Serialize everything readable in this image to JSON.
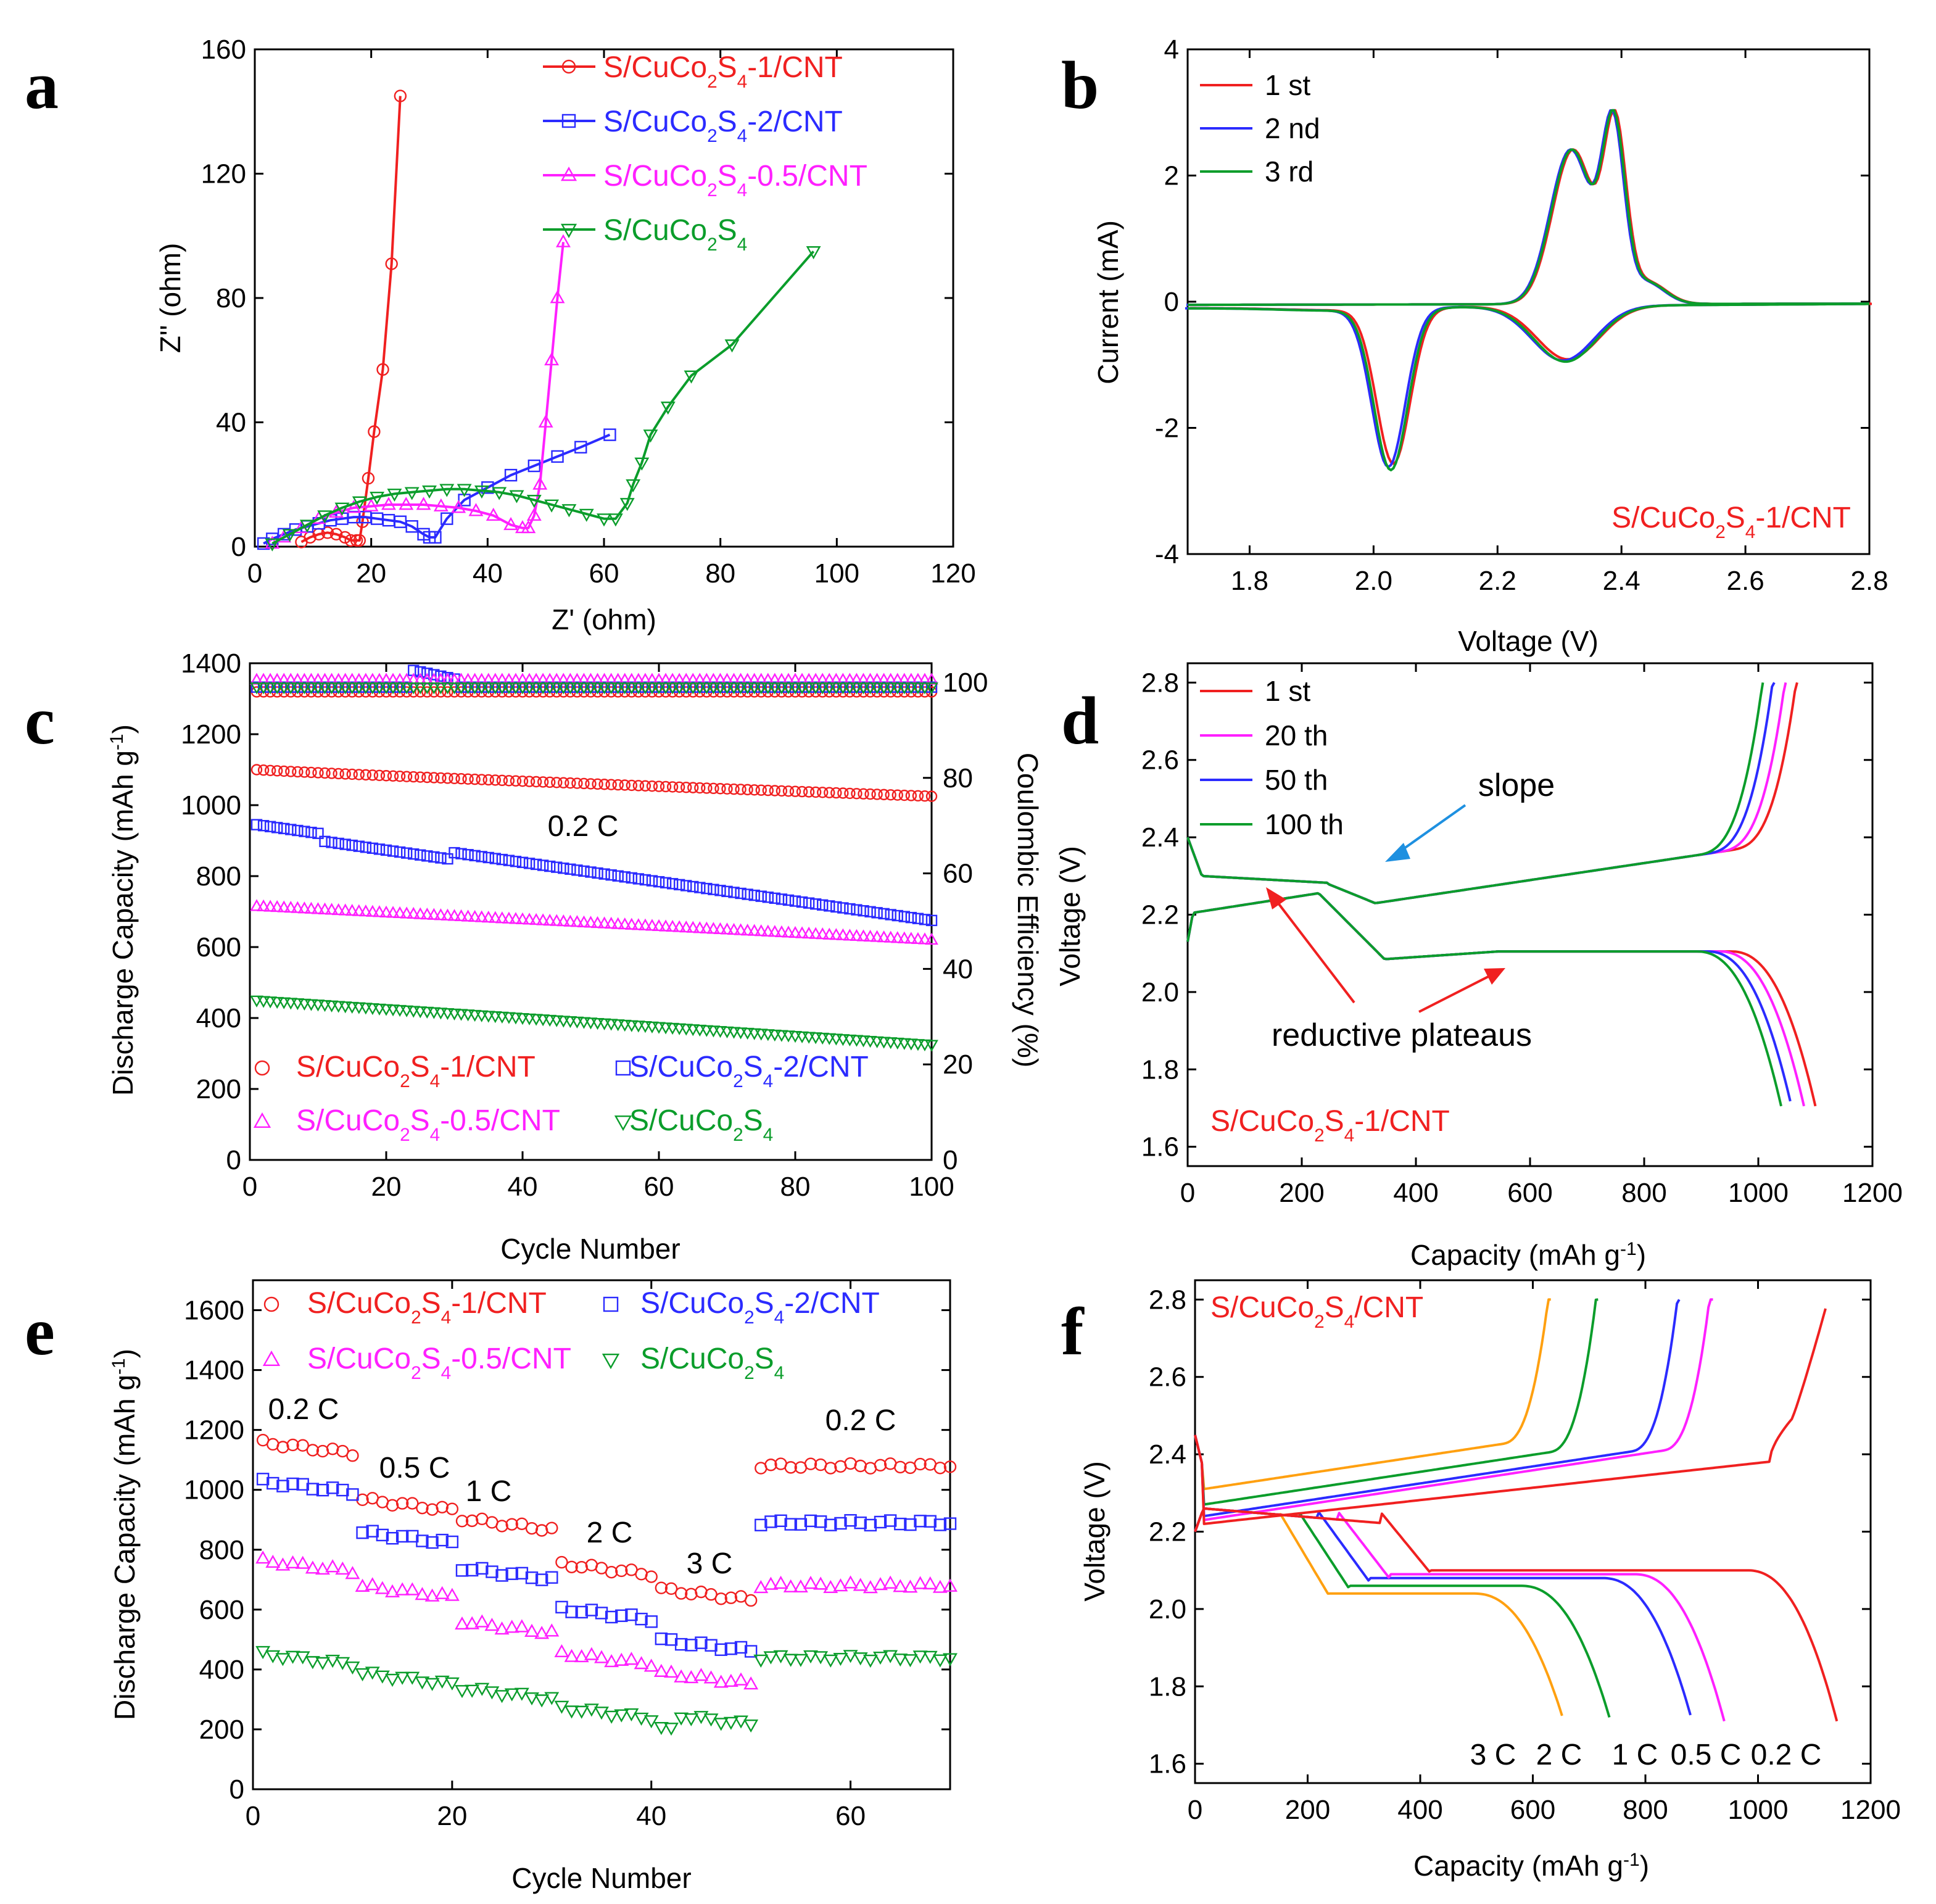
{
  "figure": {
    "colors": {
      "red": "#f02020",
      "blue": "#2b2bff",
      "magenta": "#ff20ff",
      "green": "#0b9d2b",
      "orange": "#ffa010",
      "axis": "#000000"
    }
  },
  "chart_data": [
    {
      "id": "a",
      "type": "scatter",
      "panel_label": "a",
      "xlabel": "Z' (ohm)",
      "ylabel": "Z'' (ohm)",
      "xlim": [
        0,
        120
      ],
      "ylim": [
        0,
        160
      ],
      "xticks": [
        0,
        20,
        40,
        60,
        80,
        100,
        120
      ],
      "yticks": [
        0,
        40,
        80,
        120,
        160
      ],
      "legend_position": "top-right",
      "series": [
        {
          "name": "S/CuCo2S4-1/CNT",
          "label_main": "S/CuCo",
          "sub1": "2",
          "mid": "S",
          "sub2": "4",
          "tail": "-1/CNT",
          "color": "red",
          "marker": "circle",
          "x": [
            8,
            9.5,
            11,
            12.5,
            14,
            15.5,
            16.5,
            17.5,
            18,
            18.5,
            19.5,
            20.5,
            22,
            23.5,
            25
          ],
          "y": [
            1.5,
            3,
            4,
            4.5,
            4,
            3,
            2,
            2,
            2,
            8,
            22,
            37,
            57,
            91,
            145
          ]
        },
        {
          "name": "S/CuCo2S4-2/CNT",
          "label_main": "S/CuCo",
          "sub1": "2",
          "mid": "S",
          "sub2": "4",
          "tail": "-2/CNT",
          "color": "blue",
          "marker": "square",
          "x": [
            1.5,
            3,
            5,
            7,
            9,
            11,
            13,
            15,
            17,
            19,
            21,
            23,
            25,
            27,
            29,
            30,
            31,
            33,
            36,
            40,
            44,
            48,
            52,
            56,
            61
          ],
          "y": [
            1,
            2.5,
            4,
            5.5,
            6.5,
            7.5,
            8.5,
            9,
            9.5,
            9.5,
            9,
            8.5,
            8,
            6.5,
            4,
            3,
            3,
            9,
            15,
            19,
            23,
            26,
            29,
            32,
            36
          ]
        },
        {
          "name": "S/CuCo2S4-0.5/CNT",
          "label_main": "S/CuCo",
          "sub1": "2",
          "mid": "S",
          "sub2": "4",
          "tail": "-0.5/CNT",
          "color": "magenta",
          "marker": "triangle-up",
          "x": [
            3,
            5,
            8,
            11,
            14,
            17,
            20,
            23,
            26,
            29,
            32,
            35,
            38,
            41,
            44,
            46,
            47,
            48,
            49,
            50,
            51,
            52,
            53
          ],
          "y": [
            1,
            3,
            6,
            9,
            11,
            12.5,
            13,
            13.5,
            13.5,
            13.5,
            13,
            12.5,
            11.5,
            10,
            7,
            6,
            6,
            10,
            20,
            40,
            60,
            80,
            98
          ]
        },
        {
          "name": "S/CuCo2S4",
          "label_main": "S/CuCo",
          "sub1": "2",
          "mid": "S",
          "sub2": "4",
          "tail": "",
          "color": "green",
          "marker": "triangle-down",
          "x": [
            3,
            6,
            9,
            12,
            15,
            18,
            21,
            24,
            27,
            30,
            33,
            36,
            39,
            42,
            45,
            48,
            51,
            54,
            57,
            60,
            62,
            64,
            65,
            66.5,
            68,
            71,
            75,
            82,
            96
          ],
          "y": [
            1,
            4,
            7,
            10,
            12.5,
            14.5,
            16,
            17,
            17.5,
            18,
            18.5,
            18.5,
            18,
            17.5,
            16.5,
            15,
            13.5,
            12,
            10.5,
            9,
            9,
            14,
            20,
            27,
            36,
            45,
            55,
            65,
            95
          ]
        }
      ]
    },
    {
      "id": "b",
      "type": "line",
      "panel_label": "b",
      "xlabel": "Voltage (V)",
      "ylabel": "Current (mA)",
      "xlim": [
        1.7,
        2.8
      ],
      "ylim": [
        -4,
        4
      ],
      "xticks": [
        1.8,
        2.0,
        2.2,
        2.4,
        2.6,
        2.8
      ],
      "yticks": [
        -4,
        -2,
        0,
        2,
        4
      ],
      "xticklabels": [
        "1.8",
        "2.0",
        "2.2",
        "2.4",
        "2.6",
        "2.8"
      ],
      "legend_position": "top-left",
      "annotation": {
        "main": "S/CuCo",
        "sub1": "2",
        "mid": "S",
        "sub2": "4",
        "tail": "-1/CNT",
        "color": "red"
      },
      "series": [
        {
          "name": "1 st",
          "color": "red",
          "dx": 0.004
        },
        {
          "name": "2 nd",
          "color": "blue",
          "dx": -0.004
        },
        {
          "name": "3 rd",
          "color": "green",
          "dx": 0
        }
      ]
    },
    {
      "id": "c",
      "type": "scatter",
      "panel_label": "c",
      "xlabel": "Cycle Number",
      "ylabel": "Discharge Capacity (mAh g",
      "ylabel_sup": "-1",
      "ylabel_end": ")",
      "y2label": "Coulombic Efficiency (%)",
      "xlim": [
        0,
        100
      ],
      "ylim": [
        0,
        1400
      ],
      "y2lim": [
        0,
        104
      ],
      "xticks": [
        0,
        20,
        40,
        60,
        80,
        100
      ],
      "yticks": [
        0,
        200,
        400,
        600,
        800,
        1000,
        1200,
        1400
      ],
      "y2ticks": [
        0,
        20,
        40,
        60,
        80,
        100
      ],
      "annotation": "0.2 C",
      "legend_position": "bottom",
      "series": [
        {
          "name": "S/CuCo2S4-1/CNT",
          "label_main": "S/CuCo",
          "sub1": "2",
          "mid": "S",
          "sub2": "4",
          "tail": "-1/CNT",
          "color": "red",
          "marker": "circle",
          "start": 1100,
          "end": 1025,
          "shape": 0.9,
          "ce": 98
        },
        {
          "name": "S/CuCo2S4-2/CNT",
          "label_main": "S/CuCo",
          "sub1": "2",
          "mid": "S",
          "sub2": "4",
          "tail": "-2/CNT",
          "color": "blue",
          "marker": "square",
          "start": 945,
          "end": 675,
          "shape": 1.0,
          "ce": 99
        },
        {
          "name": "S/CuCo2S4-0.5/CNT",
          "label_main": "S/CuCo",
          "sub1": "2",
          "mid": "S",
          "sub2": "4",
          "tail": "-0.5/CNT",
          "color": "magenta",
          "marker": "triangle-up",
          "start": 715,
          "end": 620,
          "shape": 1.0,
          "ce": 100.5
        },
        {
          "name": "S/CuCo2S4",
          "label_main": "S/CuCo",
          "sub1": "2",
          "mid": "S",
          "sub2": "4",
          "tail": "",
          "color": "green",
          "marker": "triangle-down",
          "start": 450,
          "end": 325,
          "shape": 1.0,
          "ce": 99
        }
      ]
    },
    {
      "id": "d",
      "type": "line",
      "panel_label": "d",
      "xlabel": "Capacity (mAh g",
      "xlabel_sup": "-1",
      "xlabel_end": ")",
      "ylabel": "Voltage (V)",
      "xlim": [
        0,
        1200
      ],
      "ylim": [
        1.55,
        2.85
      ],
      "xticks": [
        0,
        200,
        400,
        600,
        800,
        1000,
        1200
      ],
      "yticks": [
        1.6,
        1.8,
        2.0,
        2.2,
        2.4,
        2.6,
        2.8
      ],
      "yticklabels": [
        "1.6",
        "1.8",
        "2.0",
        "2.2",
        "2.4",
        "2.6",
        "2.8"
      ],
      "legend_position": "top-left",
      "annotations": {
        "slope": "slope",
        "plateaus": "reductive plateaus"
      },
      "sample": {
        "main": "S/CuCo",
        "sub1": "2",
        "mid": "S",
        "sub2": "4",
        "tail": "-1/CNT",
        "color": "red"
      },
      "series": [
        {
          "name": "1 st",
          "color": "red",
          "cap": 1100
        },
        {
          "name": "20 th",
          "color": "magenta",
          "cap": 1080
        },
        {
          "name": "50 th",
          "color": "blue",
          "cap": 1058
        },
        {
          "name": "100 th",
          "color": "green",
          "cap": 1040
        }
      ]
    },
    {
      "id": "e",
      "type": "scatter",
      "panel_label": "e",
      "xlabel": "Cycle Number",
      "ylabel": "Discharge Capacity (mAh g",
      "ylabel_sup": "-1",
      "ylabel_end": ")",
      "xlim": [
        0,
        70
      ],
      "ylim": [
        0,
        1700
      ],
      "xticks": [
        0,
        20,
        40,
        60
      ],
      "yticks": [
        0,
        200,
        400,
        600,
        800,
        1000,
        1200,
        1400,
        1600
      ],
      "rate_labels": [
        "0.2 C",
        "0.5 C",
        "1 C",
        "2 C",
        "3 C",
        "0.2 C"
      ],
      "legend_position": "top",
      "series": [
        {
          "name": "S/CuCo2S4-1/CNT",
          "label_main": "S/CuCo",
          "sub1": "2",
          "mid": "S",
          "sub2": "4",
          "tail": "-1/CNT",
          "color": "red",
          "marker": "circle",
          "levels": [
            1140,
            950,
            885,
            735,
            650,
            1080
          ]
        },
        {
          "name": "S/CuCo2S4-2/CNT",
          "label_main": "S/CuCo",
          "sub1": "2",
          "mid": "S",
          "sub2": "4",
          "tail": "-2/CNT",
          "color": "blue",
          "marker": "square",
          "levels": [
            1010,
            840,
            720,
            585,
            480,
            890
          ]
        },
        {
          "name": "S/CuCo2S4-0.5/CNT",
          "label_main": "S/CuCo",
          "sub1": "2",
          "mid": "S",
          "sub2": "4",
          "tail": "-0.5/CNT",
          "color": "magenta",
          "marker": "triangle-up",
          "levels": [
            745,
            660,
            540,
            435,
            370,
            680
          ]
        },
        {
          "name": "S/CuCo2S4",
          "label_main": "S/CuCo",
          "sub1": "2",
          "mid": "S",
          "sub2": "4",
          "tail": "",
          "color": "green",
          "marker": "triangle-down",
          "levels": [
            435,
            370,
            320,
            255,
            235,
            440
          ]
        }
      ]
    },
    {
      "id": "f",
      "type": "line",
      "panel_label": "f",
      "xlabel": "Capacity (mAh g",
      "xlabel_sup": "-1",
      "xlabel_end": ")",
      "ylabel": "Voltage (V)",
      "xlim": [
        0,
        1200
      ],
      "ylim": [
        1.55,
        2.85
      ],
      "xticks": [
        0,
        200,
        400,
        600,
        800,
        1000,
        1200
      ],
      "yticks": [
        1.6,
        1.8,
        2.0,
        2.2,
        2.4,
        2.6,
        2.8
      ],
      "yticklabels": [
        "1.6",
        "1.8",
        "2.0",
        "2.2",
        "2.4",
        "2.6",
        "2.8"
      ],
      "sample": {
        "main": "S/CuCo",
        "sub1": "2",
        "mid": "S",
        "sub2": "4",
        "tail": "/CNT",
        "color": "red"
      },
      "series": [
        {
          "name": "3 C",
          "color": "orange",
          "cap": 655,
          "plateau": 2.03,
          "charge": 2.31
        },
        {
          "name": "2 C",
          "color": "green",
          "cap": 738,
          "plateau": 2.05,
          "charge": 2.27
        },
        {
          "name": "1 C",
          "color": "blue",
          "cap": 883,
          "plateau": 2.07,
          "charge": 2.24
        },
        {
          "name": "0.5 C",
          "color": "magenta",
          "cap": 940,
          "plateau": 2.08,
          "charge": 2.23
        },
        {
          "name": "0.2 C",
          "color": "red",
          "cap": 1140,
          "plateau": 2.09,
          "charge": 2.22
        }
      ]
    }
  ]
}
